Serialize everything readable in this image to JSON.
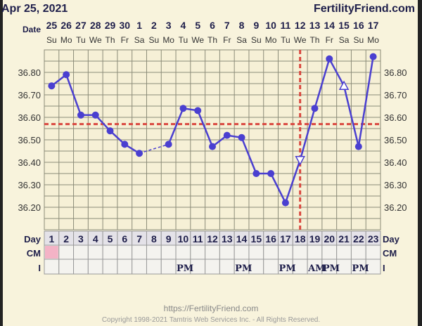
{
  "header": {
    "date": "Apr 25, 2021",
    "site": "FertilityFriend.com"
  },
  "footer": {
    "url": "https://FertilityFriend.com",
    "copyright": "Copyright 1998-2021 Tamtris Web Services Inc. - All Rights Reserved."
  },
  "colors": {
    "line": "#4a3fd0",
    "coverline": "#d9473f",
    "background": "#f8f3dc",
    "cm_pink": "#f4b3c6",
    "grid": "#8b8b78"
  },
  "chart_data": {
    "type": "line",
    "row_labels": {
      "date": "Date",
      "day": "Day",
      "cm": "CM",
      "intercourse": "I"
    },
    "dates": [
      "25",
      "26",
      "27",
      "28",
      "29",
      "30",
      "1",
      "2",
      "3",
      "4",
      "5",
      "6",
      "7",
      "8",
      "9",
      "10",
      "11",
      "12",
      "13",
      "14",
      "15",
      "16",
      "17"
    ],
    "weekdays": [
      "Su",
      "Mo",
      "Tu",
      "We",
      "Th",
      "Fr",
      "Sa",
      "Su",
      "Mo",
      "Tu",
      "We",
      "Th",
      "Fr",
      "Sa",
      "Su",
      "Mo",
      "Tu",
      "We",
      "Th",
      "Fr",
      "Sa",
      "Su",
      "Mo"
    ],
    "days": [
      1,
      2,
      3,
      4,
      5,
      6,
      7,
      8,
      9,
      10,
      11,
      12,
      13,
      14,
      15,
      16,
      17,
      18,
      19,
      20,
      21,
      22,
      23
    ],
    "temperatures": [
      36.74,
      36.79,
      36.61,
      36.61,
      36.54,
      36.48,
      36.44,
      null,
      36.48,
      36.64,
      36.63,
      36.47,
      36.52,
      36.51,
      36.35,
      36.35,
      36.22,
      36.41,
      36.64,
      36.86,
      36.74,
      36.47,
      36.87
    ],
    "markers": {
      "18": "triangle-down-open",
      "21": "triangle-up-open"
    },
    "ylim": [
      36.1,
      36.9
    ],
    "yticks": [
      "36.80",
      "36.70",
      "36.60",
      "36.50",
      "36.40",
      "36.30",
      "36.20"
    ],
    "coverline": 36.57,
    "ovulation_day": 18,
    "cm": {
      "1": "pink"
    },
    "intercourse": {
      "10": "PM",
      "14": "PM",
      "17": "PM",
      "19": "AM",
      "20": "PM",
      "22": "PM"
    },
    "grid": true
  }
}
